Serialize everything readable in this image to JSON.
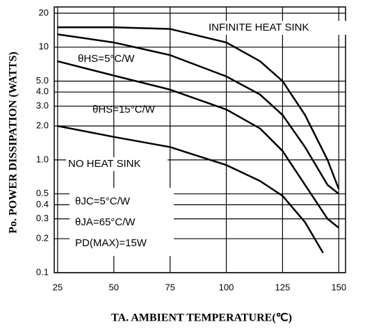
{
  "chart_data": {
    "type": "line",
    "x_label": "TA. AMBIENT TEMPERATURE(℃)",
    "y_label": "Po. POWER DISSIPATION (WATTS)",
    "log_y": true,
    "grid": true,
    "color": "#000000",
    "xlim": [
      23.5,
      153
    ],
    "xticks": [
      25,
      50,
      75,
      100,
      125,
      150
    ],
    "ylim": [
      0.1,
      20
    ],
    "yticks": [
      0.1,
      0.2,
      0.3,
      0.4,
      0.5,
      {
        "value": 1,
        "label": "1.0"
      },
      {
        "value": 2,
        "label": "2.0"
      },
      {
        "value": 3,
        "label": "3.0"
      },
      {
        "value": 4,
        "label": "4.0"
      },
      {
        "value": 5,
        "label": "5.0"
      },
      10,
      20
    ],
    "series": [
      {
        "x": [
          25,
          50,
          75,
          100,
          115,
          125,
          135,
          145,
          150
        ],
        "values": [
          15,
          15,
          14.5,
          11,
          7.5,
          5,
          2.5,
          1,
          0.55
        ]
      },
      {
        "x": [
          25,
          50,
          75,
          100,
          115,
          125,
          135,
          145,
          150
        ],
        "values": [
          13,
          11,
          8.5,
          5.5,
          3.8,
          2.5,
          1.3,
          0.6,
          0.5
        ]
      },
      {
        "x": [
          25,
          50,
          75,
          100,
          115,
          125,
          135,
          145,
          150
        ],
        "values": [
          7.5,
          5.6,
          4.2,
          2.8,
          1.9,
          1.2,
          0.6,
          0.3,
          0.25
        ]
      },
      {
        "x": [
          25,
          50,
          75,
          100,
          115,
          125,
          135,
          143
        ],
        "values": [
          2,
          1.6,
          1.3,
          0.9,
          0.65,
          0.48,
          0.28,
          0.15
        ]
      }
    ],
    "annotations": [
      "INFINITE HEAT SINK",
      "θHS=5°C/W",
      "θHS=15°C/W",
      "NO HEAT SINK",
      "θJC=5°C/W",
      "θJA=65°C/W",
      "PD(MAX)=15W"
    ]
  }
}
